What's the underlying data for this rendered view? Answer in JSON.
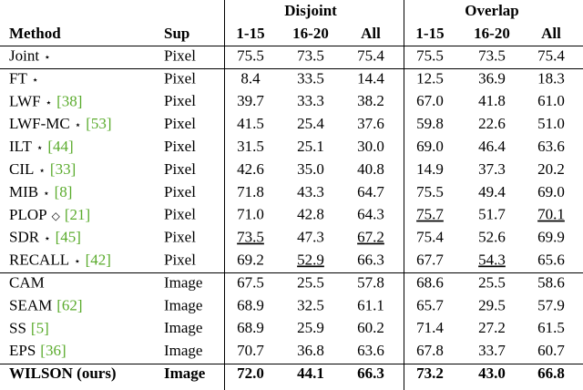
{
  "header": {
    "groups": [
      "Disjoint",
      "Overlap"
    ],
    "columns": [
      "Method",
      "Sup",
      "1-15",
      "16-20",
      "All",
      "1-15",
      "16-20",
      "All"
    ]
  },
  "rows": [
    {
      "method": "Joint",
      "symbol": "⋆",
      "sup": "Pixel",
      "values": [
        "75.5",
        "73.5",
        "75.4",
        "75.5",
        "73.5",
        "75.4"
      ]
    },
    {
      "method": "FT",
      "symbol": "⋆",
      "sup": "Pixel",
      "values": [
        "8.4",
        "33.5",
        "14.4",
        "12.5",
        "36.9",
        "18.3"
      ]
    },
    {
      "method": "LWF",
      "symbol": "⋆",
      "cite": "[38]",
      "sup": "Pixel",
      "values": [
        "39.7",
        "33.3",
        "38.2",
        "67.0",
        "41.8",
        "61.0"
      ]
    },
    {
      "method": "LWF-MC",
      "symbol": "⋆",
      "cite": "[53]",
      "sup": "Pixel",
      "values": [
        "41.5",
        "25.4",
        "37.6",
        "59.8",
        "22.6",
        "51.0"
      ]
    },
    {
      "method": "ILT",
      "symbol": "⋆",
      "cite": "[44]",
      "sup": "Pixel",
      "values": [
        "31.5",
        "25.1",
        "30.0",
        "69.0",
        "46.4",
        "63.6"
      ]
    },
    {
      "method": "CIL",
      "symbol": "⋆",
      "cite": "[33]",
      "sup": "Pixel",
      "values": [
        "42.6",
        "35.0",
        "40.8",
        "14.9",
        "37.3",
        "20.2"
      ]
    },
    {
      "method": "MIB",
      "symbol": "⋆",
      "cite": "[8]",
      "sup": "Pixel",
      "values": [
        "71.8",
        "43.3",
        "64.7",
        "75.5",
        "49.4",
        "69.0"
      ]
    },
    {
      "method": "PLOP",
      "symbol": "◇",
      "cite": "[21]",
      "sup": "Pixel",
      "values": [
        "71.0",
        "42.8",
        "64.3",
        "75.7",
        "51.7",
        "70.1"
      ],
      "underline": [
        3,
        5
      ]
    },
    {
      "method": "SDR",
      "symbol": "⋆",
      "cite": "[45]",
      "sup": "Pixel",
      "values": [
        "73.5",
        "47.3",
        "67.2",
        "75.4",
        "52.6",
        "69.9"
      ],
      "underline": [
        0,
        2
      ]
    },
    {
      "method": "RECALL",
      "symbol": "⋆",
      "cite": "[42]",
      "sup": "Pixel",
      "values": [
        "69.2",
        "52.9",
        "66.3",
        "67.7",
        "54.3",
        "65.6"
      ],
      "underline": [
        1,
        4
      ]
    },
    {
      "method": "CAM",
      "sup": "Image",
      "values": [
        "67.5",
        "25.5",
        "57.8",
        "68.6",
        "25.5",
        "58.6"
      ]
    },
    {
      "method": "SEAM",
      "cite": "[62]",
      "sup": "Image",
      "values": [
        "68.9",
        "32.5",
        "61.1",
        "65.7",
        "29.5",
        "57.9"
      ]
    },
    {
      "method": "SS",
      "cite": "[5]",
      "sup": "Image",
      "values": [
        "68.9",
        "25.9",
        "60.2",
        "71.4",
        "27.2",
        "61.5"
      ]
    },
    {
      "method": "EPS",
      "cite": "[36]",
      "sup": "Image",
      "values": [
        "70.7",
        "36.8",
        "63.6",
        "67.8",
        "33.7",
        "60.7"
      ]
    },
    {
      "method": "WILSON (ours)",
      "sup": "Image",
      "values": [
        "72.0",
        "44.1",
        "66.3",
        "73.2",
        "43.0",
        "66.8"
      ],
      "bold": true
    }
  ]
}
